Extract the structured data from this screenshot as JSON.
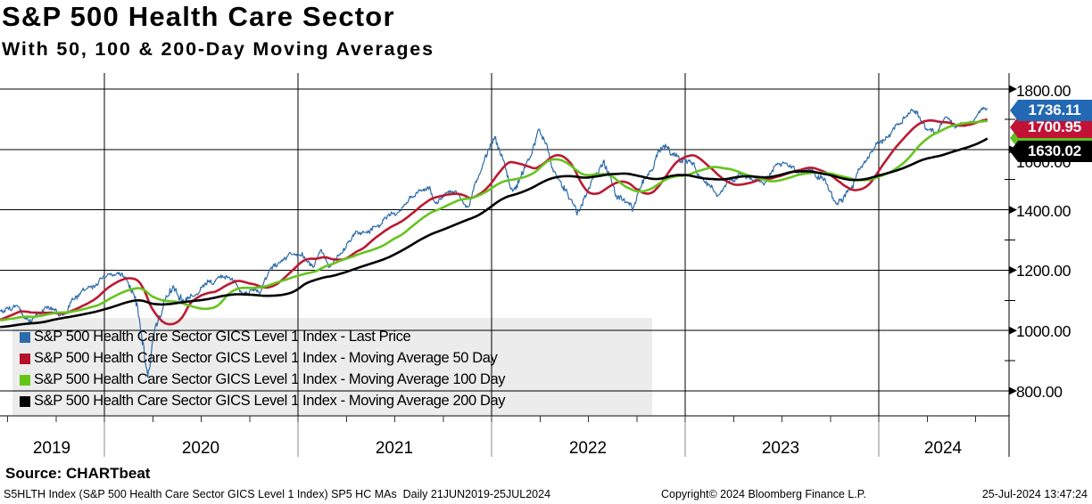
{
  "header": {
    "title": "S&P 500 Health Care Sector",
    "subtitle": "With 50, 100 & 200-Day Moving Averages"
  },
  "legend": {
    "items": [
      {
        "label": "S&P 500 Health Care Sector GICS Level 1 Index - Last Price",
        "color": "#2d6ba8"
      },
      {
        "label": "S&P 500 Health Care Sector GICS Level 1 Index - Moving Average 50 Day",
        "color": "#b5122b"
      },
      {
        "label": "S&P 500 Health Care Sector GICS Level 1 Index - Moving Average 100 Day",
        "color": "#66c414"
      },
      {
        "label": "S&P 500 Health Care Sector GICS Level 1 Index - Moving Average 200 Day",
        "color": "#000000"
      }
    ]
  },
  "price_tags": {
    "items": [
      {
        "id": "tag-last",
        "value": "1736.11",
        "color": "#2268b4",
        "text_color": "#ffffff"
      },
      {
        "id": "tag-ma50",
        "value": "1700.95",
        "color": "#c11236",
        "text_color": "#ffffff"
      },
      {
        "id": "tag-ma100",
        "value": "",
        "color": "#5dc01f",
        "text_color": "#ffffff"
      },
      {
        "id": "tag-ma200",
        "value": "1630.02",
        "color": "#000000",
        "text_color": "#ffffff"
      }
    ]
  },
  "source_line": "Source: CHARTbeat",
  "footer": {
    "left": "S5HLTH Index (S&P 500 Health Care Sector GICS Level 1 Index) SP5 HC MAs  Daily 21JUN2019-25JUL2024",
    "center": "Copyright© 2024 Bloomberg Finance L.P.",
    "right": "25-Jul-2024 13:47:24"
  },
  "chart_data": {
    "type": "line",
    "title": "S&P 500 Health Care Sector",
    "subtitle": "With 50, 100 & 200-Day Moving Averages",
    "x_axis": {
      "labels": [
        "2019",
        "2020",
        "2021",
        "2022",
        "2023",
        "2024"
      ],
      "range": "Daily 21JUN2019-25JUL2024",
      "year_gridlines": [
        2020,
        2021,
        2022,
        2023,
        2024
      ]
    },
    "y_axis": {
      "ticks": [
        "1800.00",
        "1600.00",
        "1400.00",
        "1200.00",
        "1000.00",
        "800.00"
      ],
      "tick_values": [
        1800,
        1600,
        1400,
        1200,
        1000,
        800
      ],
      "minor_tick_values": [
        1700,
        1500,
        1300,
        1100,
        900
      ],
      "side": "right",
      "grid": true
    },
    "last_values": {
      "last_price": 1736.11,
      "ma50": 1700.95,
      "ma200": 1630.02
    },
    "series": [
      {
        "name": "Last Price",
        "color": "#2d6ba8",
        "width": 1.2,
        "kind": "price",
        "anchors": [
          [
            2018.7,
            1015
          ],
          [
            2018.78,
            985
          ],
          [
            2018.85,
            1010
          ],
          [
            2018.92,
            950
          ],
          [
            2018.98,
            965
          ],
          [
            2019.05,
            1010
          ],
          [
            2019.12,
            1040
          ],
          [
            2019.2,
            1030
          ],
          [
            2019.28,
            1020
          ],
          [
            2019.35,
            1028
          ],
          [
            2019.42,
            1050
          ],
          [
            2019.47,
            1068
          ],
          [
            2019.54,
            1078
          ],
          [
            2019.58,
            1048
          ],
          [
            2019.63,
            1042
          ],
          [
            2019.7,
            1072
          ],
          [
            2019.75,
            1062
          ],
          [
            2019.8,
            1065
          ],
          [
            2019.85,
            1105
          ],
          [
            2019.9,
            1135
          ],
          [
            2019.96,
            1162
          ],
          [
            2020.03,
            1180
          ],
          [
            2020.1,
            1192
          ],
          [
            2020.14,
            1150
          ],
          [
            2020.18,
            1010
          ],
          [
            2020.225,
            858
          ],
          [
            2020.26,
            1010
          ],
          [
            2020.3,
            1085
          ],
          [
            2020.37,
            1128
          ],
          [
            2020.42,
            1108
          ],
          [
            2020.48,
            1118
          ],
          [
            2020.54,
            1162
          ],
          [
            2020.6,
            1180
          ],
          [
            2020.66,
            1168
          ],
          [
            2020.7,
            1128
          ],
          [
            2020.76,
            1140
          ],
          [
            2020.8,
            1118
          ],
          [
            2020.85,
            1195
          ],
          [
            2020.9,
            1232
          ],
          [
            2020.96,
            1244
          ],
          [
            2021.02,
            1252
          ],
          [
            2021.07,
            1218
          ],
          [
            2021.12,
            1258
          ],
          [
            2021.16,
            1208
          ],
          [
            2021.22,
            1262
          ],
          [
            2021.28,
            1305
          ],
          [
            2021.34,
            1328
          ],
          [
            2021.4,
            1345
          ],
          [
            2021.46,
            1368
          ],
          [
            2021.52,
            1400
          ],
          [
            2021.58,
            1438
          ],
          [
            2021.64,
            1460
          ],
          [
            2021.68,
            1478
          ],
          [
            2021.72,
            1418
          ],
          [
            2021.78,
            1460
          ],
          [
            2021.83,
            1452
          ],
          [
            2021.88,
            1410
          ],
          [
            2021.93,
            1500
          ],
          [
            2021.98,
            1598
          ],
          [
            2022.02,
            1650
          ],
          [
            2022.06,
            1562
          ],
          [
            2022.1,
            1448
          ],
          [
            2022.14,
            1500
          ],
          [
            2022.18,
            1555
          ],
          [
            2022.24,
            1648
          ],
          [
            2022.28,
            1620
          ],
          [
            2022.33,
            1520
          ],
          [
            2022.38,
            1465
          ],
          [
            2022.44,
            1380
          ],
          [
            2022.48,
            1450
          ],
          [
            2022.53,
            1505
          ],
          [
            2022.58,
            1548
          ],
          [
            2022.63,
            1480
          ],
          [
            2022.68,
            1430
          ],
          [
            2022.73,
            1398
          ],
          [
            2022.78,
            1495
          ],
          [
            2022.84,
            1560
          ],
          [
            2022.9,
            1608
          ],
          [
            2022.95,
            1582
          ],
          [
            2023.0,
            1570
          ],
          [
            2023.06,
            1520
          ],
          [
            2023.12,
            1488
          ],
          [
            2023.18,
            1445
          ],
          [
            2023.23,
            1492
          ],
          [
            2023.28,
            1522
          ],
          [
            2023.34,
            1502
          ],
          [
            2023.4,
            1482
          ],
          [
            2023.45,
            1540
          ],
          [
            2023.52,
            1552
          ],
          [
            2023.57,
            1528
          ],
          [
            2023.62,
            1540
          ],
          [
            2023.67,
            1512
          ],
          [
            2023.72,
            1500
          ],
          [
            2023.76,
            1452
          ],
          [
            2023.81,
            1420
          ],
          [
            2023.86,
            1472
          ],
          [
            2023.9,
            1540
          ],
          [
            2023.96,
            1592
          ],
          [
            2024.02,
            1625
          ],
          [
            2024.08,
            1672
          ],
          [
            2024.14,
            1708
          ],
          [
            2024.2,
            1725
          ],
          [
            2024.25,
            1668
          ],
          [
            2024.3,
            1655
          ],
          [
            2024.35,
            1702
          ],
          [
            2024.4,
            1688
          ],
          [
            2024.45,
            1678
          ],
          [
            2024.5,
            1700
          ],
          [
            2024.54,
            1745
          ],
          [
            2024.565,
            1736.11
          ]
        ]
      },
      {
        "name": "Moving Average 50 Day",
        "color": "#bb1a33",
        "width": 2.6,
        "kind": "ma",
        "window": 50
      },
      {
        "name": "Moving Average 100 Day",
        "color": "#66c41e",
        "width": 2.6,
        "kind": "ma",
        "window": 100
      },
      {
        "name": "Moving Average 200 Day",
        "color": "#000000",
        "width": 2.6,
        "kind": "ma",
        "window": 200
      }
    ],
    "time_range": [
      2019.47,
      2024.565
    ]
  }
}
